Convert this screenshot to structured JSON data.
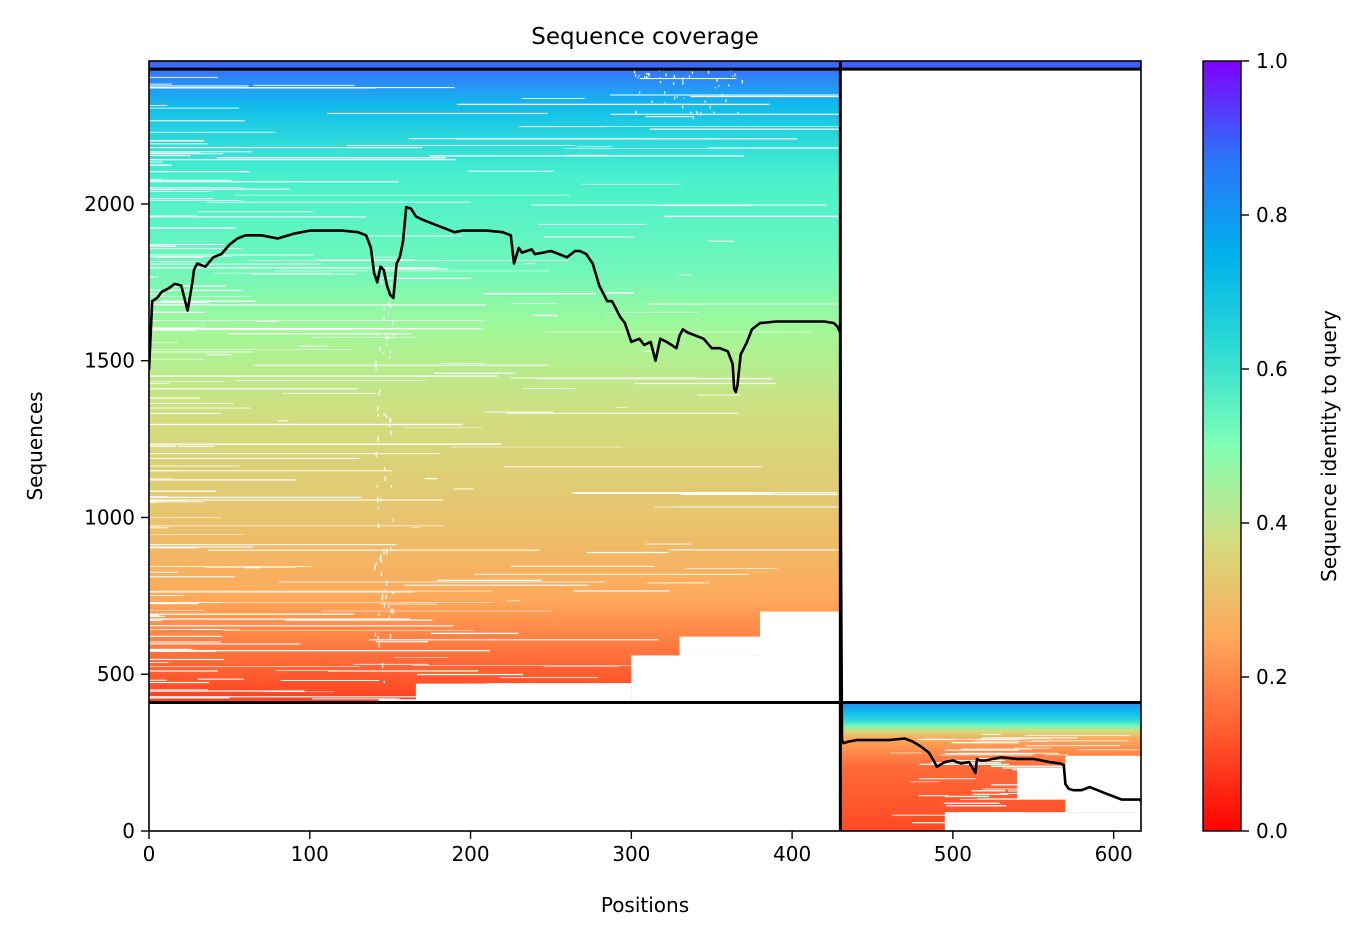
{
  "chart_data": {
    "type": "heatmap",
    "title": "Sequence coverage",
    "xlabel": "Positions",
    "ylabel": "Sequences",
    "xlim": [
      0,
      617
    ],
    "ylim": [
      0,
      2456
    ],
    "xticks": [
      0,
      100,
      200,
      300,
      400,
      500,
      600
    ],
    "yticks": [
      0,
      500,
      1000,
      1500,
      2000
    ],
    "grid": false,
    "colormap": "rainbow_r",
    "colorbar": {
      "label": "Sequence identity to query",
      "range": [
        0.0,
        1.0
      ],
      "ticks": [
        "0.0",
        "0.2",
        "0.4",
        "0.6",
        "0.8",
        "1.0"
      ]
    },
    "chain_boundary_position": 430,
    "pairing_boundary_sequence": 410,
    "block_1": {
      "positions": [
        0,
        430
      ],
      "sequences": [
        410,
        2456
      ],
      "identity_at_bottom": 0.12,
      "identity_at_top": 0.88
    },
    "block_2": {
      "positions": [
        430,
        617
      ],
      "sequences": [
        0,
        410
      ],
      "identity_at_bottom": 0.12,
      "identity_at_top": 0.8
    },
    "coverage_line": {
      "x": [
        0,
        2,
        5,
        8,
        12,
        16,
        20,
        24,
        27,
        28,
        30,
        35,
        40,
        45,
        50,
        55,
        60,
        70,
        80,
        90,
        100,
        110,
        120,
        130,
        135,
        138,
        140,
        142,
        144,
        146,
        148,
        150,
        152,
        154,
        156,
        158,
        160,
        163,
        166,
        170,
        175,
        180,
        185,
        190,
        195,
        200,
        210,
        220,
        225,
        227,
        230,
        232,
        235,
        238,
        240,
        245,
        250,
        255,
        260,
        265,
        268,
        272,
        276,
        280,
        282,
        285,
        288,
        290,
        293,
        296,
        300,
        305,
        308,
        312,
        315,
        318,
        322,
        328,
        330,
        332,
        335,
        340,
        345,
        350,
        355,
        360,
        363,
        364,
        365,
        366,
        368,
        372,
        375,
        380,
        390,
        400,
        410,
        420,
        426,
        428,
        430,
        430.5,
        431,
        432,
        435,
        440,
        450,
        460,
        470,
        475,
        480,
        485,
        488,
        490,
        495,
        500,
        505,
        510,
        514,
        515,
        517,
        520,
        525,
        530,
        540,
        550,
        560,
        567,
        569,
        570,
        572,
        575,
        580,
        585,
        590,
        595,
        600,
        605,
        610,
        614,
        616,
        617
      ],
      "y": [
        1470,
        1690,
        1700,
        1720,
        1730,
        1745,
        1740,
        1660,
        1750,
        1790,
        1810,
        1800,
        1830,
        1840,
        1870,
        1890,
        1900,
        1900,
        1890,
        1905,
        1915,
        1915,
        1915,
        1910,
        1900,
        1860,
        1780,
        1750,
        1800,
        1790,
        1740,
        1710,
        1700,
        1810,
        1830,
        1880,
        1990,
        1985,
        1960,
        1950,
        1940,
        1930,
        1920,
        1910,
        1915,
        1915,
        1915,
        1910,
        1900,
        1810,
        1860,
        1845,
        1850,
        1855,
        1840,
        1845,
        1850,
        1840,
        1830,
        1850,
        1850,
        1840,
        1810,
        1740,
        1720,
        1690,
        1690,
        1670,
        1640,
        1620,
        1560,
        1570,
        1550,
        1560,
        1500,
        1570,
        1560,
        1540,
        1580,
        1600,
        1590,
        1580,
        1570,
        1540,
        1540,
        1530,
        1490,
        1410,
        1400,
        1420,
        1520,
        1560,
        1600,
        1620,
        1625,
        1625,
        1625,
        1625,
        1620,
        1610,
        1590,
        820,
        290,
        280,
        285,
        290,
        290,
        290,
        295,
        285,
        270,
        250,
        225,
        205,
        220,
        225,
        215,
        220,
        185,
        230,
        225,
        225,
        230,
        235,
        230,
        230,
        220,
        215,
        210,
        150,
        135,
        130,
        130,
        140,
        130,
        120,
        110,
        100,
        100,
        100,
        100,
        95,
        15
      ]
    }
  }
}
